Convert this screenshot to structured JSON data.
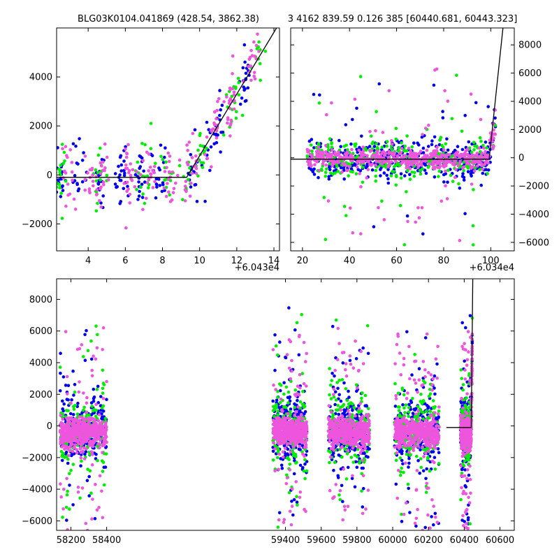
{
  "chart_data": [
    {
      "type": "scatter",
      "title": "BLG03K0104.041869 (428.54, 3862.38)",
      "x_offset_label": "+6.043e4",
      "xlim": [
        60432.3,
        60444.3
      ],
      "ylim": [
        -3100,
        6000
      ],
      "x_ticks": [
        4,
        6,
        8,
        10,
        12,
        14
      ],
      "y_ticks": [
        -2000,
        0,
        2000,
        4000
      ],
      "y_tick_labels": [
        "−2000",
        "0",
        "2000",
        "4000"
      ],
      "x_tick_labels": [
        "4",
        "6",
        "8",
        "10",
        "12",
        "14"
      ],
      "model_line": [
        [
          60432.3,
          -100
        ],
        [
          60439.3,
          -100
        ],
        [
          60444.3,
          6200
        ]
      ],
      "series": [
        {
          "color": "#0000ee",
          "seed": 11,
          "x_clusters": [
            [
              2.5,
              0.15
            ],
            [
              3.5,
              0.2
            ],
            [
              4.7,
              0.15
            ],
            [
              5.8,
              0.2
            ],
            [
              6.8,
              0.15
            ],
            [
              7.8,
              0.2
            ],
            [
              9.6,
              0.2
            ],
            [
              10.5,
              0.2
            ],
            [
              11.0,
              0.15
            ],
            [
              12.5,
              0.15
            ]
          ],
          "count": 180
        },
        {
          "color": "#00ee00",
          "seed": 23,
          "x_clusters": [
            [
              2.5,
              0.2
            ],
            [
              4.7,
              0.2
            ],
            [
              7.0,
              0.2
            ],
            [
              8.3,
              0.2
            ],
            [
              9.3,
              0.2
            ],
            [
              10.0,
              0.2
            ],
            [
              11.8,
              0.2
            ],
            [
              13.2,
              0.15
            ]
          ],
          "count": 120
        },
        {
          "color": "#ee55dd",
          "seed": 37,
          "x_clusters": [
            [
              3.0,
              0.2
            ],
            [
              4.0,
              0.2
            ],
            [
              4.8,
              0.2
            ],
            [
              6.2,
              0.2
            ],
            [
              7.3,
              0.2
            ],
            [
              8.5,
              0.2
            ],
            [
              9.5,
              0.2
            ],
            [
              10.8,
              0.25
            ],
            [
              11.7,
              0.15
            ],
            [
              12.9,
              0.2
            ]
          ],
          "count": 200
        }
      ]
    },
    {
      "type": "scatter",
      "title": "3 4162 839.59 0.126 385 [60440.681, 60443.323]",
      "x_offset_label": "+6.034e4",
      "xlim": [
        60355,
        60450
      ],
      "ylim": [
        -6600,
        9200
      ],
      "x_ticks": [
        20,
        40,
        60,
        80,
        100
      ],
      "x_tick_labels": [
        "20",
        "40",
        "60",
        "80",
        "100"
      ],
      "y_ticks": [
        -6000,
        -4000,
        -2000,
        0,
        2000,
        4000,
        6000,
        8000
      ],
      "y_tick_labels": [
        "−6000",
        "−4000",
        "−2000",
        "0",
        "2000",
        "4000",
        "6000",
        "8000"
      ],
      "model_line": [
        [
          60355,
          -100
        ],
        [
          60439.3,
          -100
        ],
        [
          60445.2,
          9200
        ]
      ],
      "series": [
        {
          "color": "#0000ee",
          "seed": 51,
          "x_range": [
            60362,
            60442
          ],
          "count": 420
        },
        {
          "color": "#00ee00",
          "seed": 63,
          "x_range": [
            60362,
            60442
          ],
          "count": 300
        },
        {
          "color": "#ee55dd",
          "seed": 77,
          "x_range": [
            60362,
            60442
          ],
          "count": 520
        }
      ]
    },
    {
      "type": "scatter",
      "xlim": [
        58120,
        60680
      ],
      "ylim": [
        -6600,
        9300
      ],
      "x_ticks": [
        58200,
        58400,
        59400,
        59600,
        59800,
        60000,
        60200,
        60400,
        60600
      ],
      "x_tick_labels": [
        "58200",
        "58400",
        "59400",
        "59600",
        "59800",
        "60000",
        "60200",
        "60400",
        "60600"
      ],
      "y_ticks": [
        -6000,
        -4000,
        -2000,
        0,
        2000,
        4000,
        6000,
        8000
      ],
      "y_tick_labels": [
        "−6000",
        "−4000",
        "−2000",
        "0",
        "2000",
        "4000",
        "6000",
        "8000"
      ],
      "model_line": [
        [
          60300,
          -100
        ],
        [
          60439.3,
          -100
        ],
        [
          60448,
          9300
        ]
      ],
      "seasons": [
        [
          58140,
          58400
        ],
        [
          59330,
          59520
        ],
        [
          59640,
          59870
        ],
        [
          60010,
          60260
        ],
        [
          60380,
          60445
        ]
      ],
      "series": [
        {
          "color": "#0000ee",
          "seed": 101,
          "count": 1300
        },
        {
          "color": "#00ee00",
          "seed": 131,
          "count": 900
        },
        {
          "color": "#ee55dd",
          "seed": 171,
          "count": 2600
        }
      ]
    }
  ]
}
